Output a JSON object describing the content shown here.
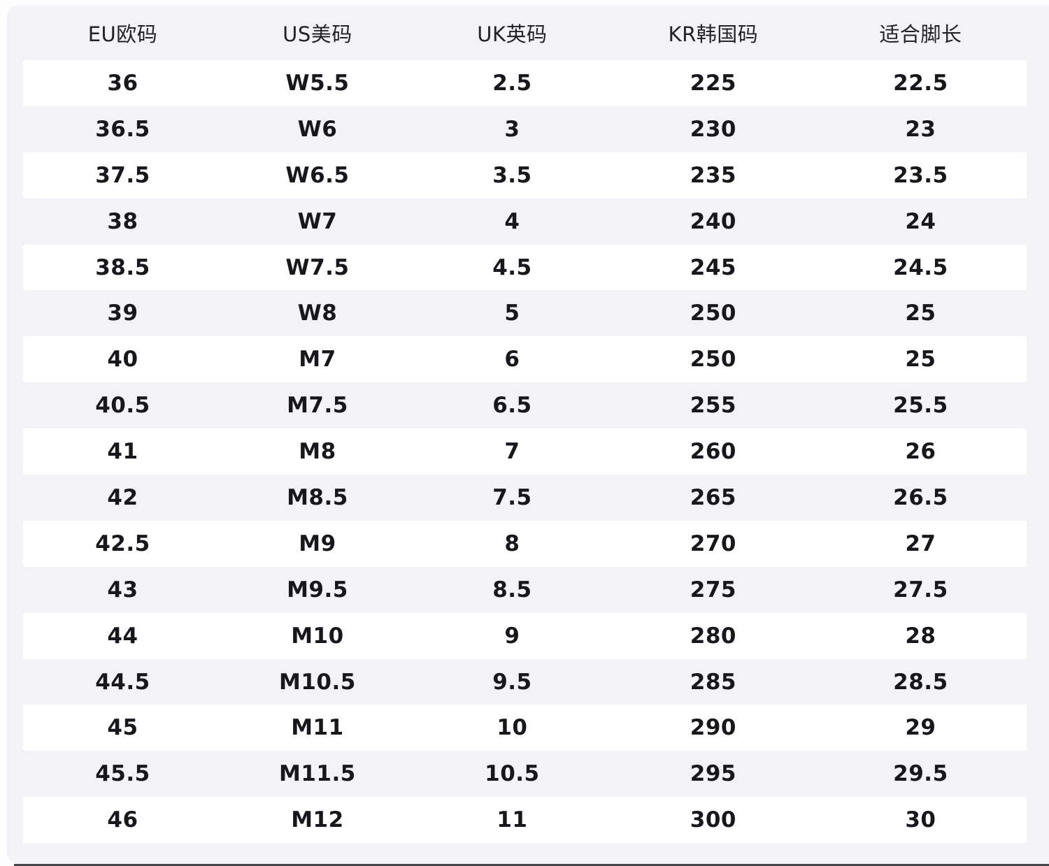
{
  "page": {
    "background": "#fdfdfe",
    "panel_background": "#f2f2f7",
    "row_white": "#ffffff",
    "value_text_color": "#18181c",
    "header_text_color": "#222227",
    "bottom_bar_color": "#24242a"
  },
  "chart_data": {
    "type": "table",
    "title": "",
    "columns": [
      "EU欧码",
      "US美码",
      "UK英码",
      "KR韩国码",
      "适合脚长"
    ],
    "rows": [
      [
        "36",
        "W5.5",
        "2.5",
        "225",
        "22.5"
      ],
      [
        "36.5",
        "W6",
        "3",
        "230",
        "23"
      ],
      [
        "37.5",
        "W6.5",
        "3.5",
        "235",
        "23.5"
      ],
      [
        "38",
        "W7",
        "4",
        "240",
        "24"
      ],
      [
        "38.5",
        "W7.5",
        "4.5",
        "245",
        "24.5"
      ],
      [
        "39",
        "W8",
        "5",
        "250",
        "25"
      ],
      [
        "40",
        "M7",
        "6",
        "250",
        "25"
      ],
      [
        "40.5",
        "M7.5",
        "6.5",
        "255",
        "25.5"
      ],
      [
        "41",
        "M8",
        "7",
        "260",
        "26"
      ],
      [
        "42",
        "M8.5",
        "7.5",
        "265",
        "26.5"
      ],
      [
        "42.5",
        "M9",
        "8",
        "270",
        "27"
      ],
      [
        "43",
        "M9.5",
        "8.5",
        "275",
        "27.5"
      ],
      [
        "44",
        "M10",
        "9",
        "280",
        "28"
      ],
      [
        "44.5",
        "M10.5",
        "9.5",
        "285",
        "28.5"
      ],
      [
        "45",
        "M11",
        "10",
        "290",
        "29"
      ],
      [
        "45.5",
        "M11.5",
        "10.5",
        "295",
        "29.5"
      ],
      [
        "46",
        "M12",
        "11",
        "300",
        "30"
      ]
    ],
    "layout": {
      "striping": "odd rows white on lavender panel",
      "alignment": "center",
      "grid": "off"
    }
  }
}
